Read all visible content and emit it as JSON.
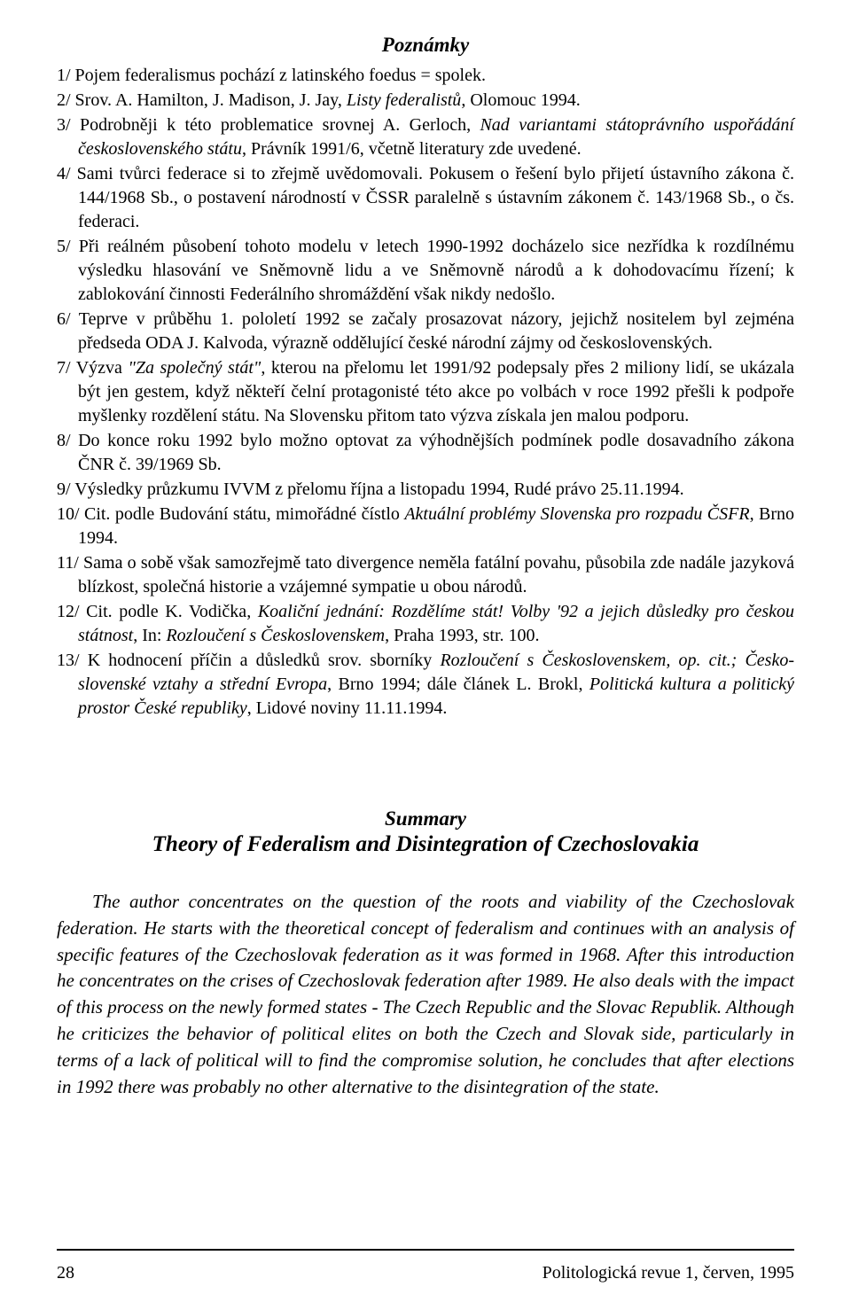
{
  "notes_heading": "Poznámky",
  "notes": [
    "1/ Pojem federalismus pochází z latinského foedus = spolek.",
    "2/ Srov. A. Hamilton, J. Madison, J. Jay, <i>Listy federalistů</i>, Olomouc 1994.",
    "3/ Podrobněji k této problematice srovnej A. Gerloch, <i>Nad variantami státoprávního uspořádání československého státu</i>, Právník 1991/6, včetně literatury zde uvedené.",
    "4/ Sami tvůrci federace si to zřejmě uvědomovali. Pokusem o řešení bylo přijetí ústavního zákona č. 144/1968 Sb., o postavení národností v ČSSR paralelně s ústavním zákonem č. 143/1968 Sb., o čs. federaci.",
    "5/ Při reálném působení tohoto modelu v letech 1990-1992 docházelo sice nezřídka k rozdílnému výsledku hlasování ve Sněmovně lidu a ve Sněmovně národů a k dohodovacímu řízení; k zablokování činnosti Federálního shromáždění však nikdy nedošlo.",
    "6/ Teprve v průběhu 1. pololetí 1992 se začaly prosazovat názory, jejichž nositelem byl zejména předseda ODA J. Kalvoda, výrazně oddělující české národní zájmy od československých.",
    "7/ Výzva <i>\"Za společný stát\"</i>, kterou na přelomu let 1991/92 podepsaly přes 2 miliony lidí, se ukázala být jen gestem, když někteří čelní protagonisté této akce po volbách v roce 1992 přešli k podpoře myšlenky rozdělení státu. Na Slovensku přitom tato výzva získala jen malou podporu.",
    "8/ Do konce roku 1992 bylo možno optovat za výhodnějších podmínek podle dosavadního zákona ČNR č. 39/1969 Sb.",
    "9/ Výsledky průzkumu IVVM z přelomu října a listopadu 1994, Rudé právo 25.11.1994.",
    "10/ Cit. podle Budování státu, mimořádné čístlo <i>Aktuální problémy Slovenska pro rozpadu ČSFR</i>, Brno 1994.",
    "11/ Sama o sobě však samozřejmě tato divergence neměla fatální povahu, působila zde nadále jazyková blízkost, společná historie a vzájemné sympatie u obou národů.",
    "12/ Cit. podle K. Vodička, <i>Koaliční jednání: Rozdělíme stát! Volby '92 a jejich důsledky pro českou státnost</i>, In: <i>Rozloučení s Československem</i>, Praha 1993, str. 100.",
    "13/ K hodnocení příčin a důsledků srov. sborníky <i>Rozloučení s Československem, op. cit.; Česko-slovenské vztahy a střední Evropa</i>, Brno 1994; dále článek L. Brokl, <i>Politická kultura a politický prostor České republiky</i>, Lidové noviny 11.11.1994."
  ],
  "summary_label": "Summary",
  "summary_title": "Theory of Federalism and Disintegration of Czechoslovakia",
  "summary_body": "The author concentrates on the question of the roots and viability of the Czechoslovak federation. He starts with the theoretical concept of federalism and continues with an analysis of specific features of the Czechoslovak federation as it was formed in 1968. After this introduction he concentrates on the crises of Czechoslovak federation after 1989. He also deals with the impact of this process on the newly formed states - The Czech Republic and the Slovac Republik. Although he criticizes the behavior of political elites on both the Czech and Slovak side, particularly in terms of a lack of political will to find the compromise solution, he concludes that after elections in 1992 there was probably no other alternative to the disintegration of the state.",
  "footer": {
    "page": "28",
    "journal": "Politologická revue 1, červen, 1995"
  }
}
